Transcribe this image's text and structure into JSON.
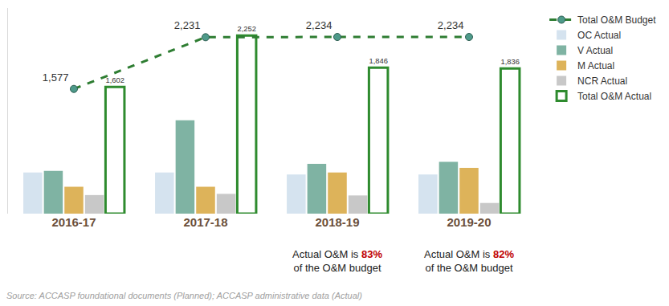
{
  "chart_data": {
    "type": "bar",
    "categories": [
      "2016-17",
      "2017-18",
      "2018-19",
      "2019-20"
    ],
    "series": [
      {
        "name": "Total O&M Budget",
        "type": "line",
        "line_style": "dash",
        "marker": "circle",
        "color": "#2e7d32",
        "values": [
          1577,
          2231,
          2234,
          2234
        ],
        "value_labels": [
          "1,577",
          "2,231",
          "2,234",
          "2,234"
        ]
      },
      {
        "name": "OC Actual",
        "color": "#d5e3ef",
        "values": [
          520,
          520,
          495,
          495
        ]
      },
      {
        "name": "V Actual",
        "color": "#7fb3a3",
        "values": [
          540,
          1180,
          630,
          655
        ]
      },
      {
        "name": "M Actual",
        "color": "#ddb35a",
        "values": [
          340,
          340,
          520,
          580
        ]
      },
      {
        "name": "NCR Actual",
        "color": "#c8c8c8",
        "values": [
          235,
          250,
          230,
          135
        ]
      },
      {
        "name": "Total O&M Actual",
        "marker": "hollow",
        "color": "#2e8b2e",
        "values": [
          1602,
          2252,
          1846,
          1836
        ],
        "value_labels": [
          "1,602",
          "2,252",
          "1,846",
          "1,836"
        ]
      }
    ],
    "ylim": [
      0,
      2600
    ],
    "yticks": [],
    "tick_labels": "x",
    "grid": false,
    "data_labels": true,
    "legend": "right",
    "annotations": [
      {
        "x": "2018-19",
        "text": [
          "Actual O&M is",
          "83%",
          "of the O&M budget"
        ]
      },
      {
        "x": "2019-20",
        "text": [
          "Actual O&M is",
          "82%",
          "of the O&M budget"
        ]
      }
    ],
    "source": "Source: ACCASP foundational documents (Planned); ACCASP administrative data (Actual)"
  }
}
